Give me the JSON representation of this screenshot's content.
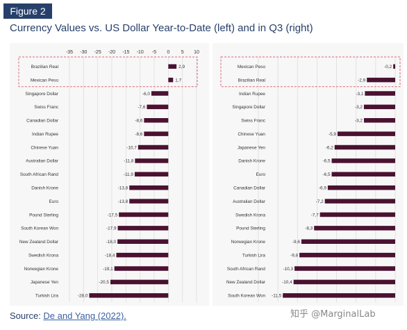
{
  "figure_label": "Figure 2",
  "title": "Currency Values vs. US Dollar Year-to-Date (left) and in Q3 (right)",
  "source": {
    "prefix": "Source: ",
    "link_text": "De and Yang (2022)."
  },
  "watermark": "知乎 @MarginalLab",
  "colors": {
    "bar": "#4a1230",
    "title": "#27406b",
    "highlight_box": "#d9667a",
    "panel_bg": "#f7f7f7"
  },
  "chart_data": [
    {
      "type": "bar",
      "orientation": "horizontal",
      "title": "",
      "xlabel": "",
      "ylabel": "",
      "xlim": [
        -35,
        10
      ],
      "xticks": [
        -35,
        -30,
        -25,
        -20,
        -15,
        -10,
        -5,
        0,
        5,
        10
      ],
      "grid": true,
      "highlighted": [
        "Brazilian Real",
        "Mexican Peso"
      ],
      "categories": [
        "Brazilian Real",
        "Mexican Peso",
        "Singapore Dollar",
        "Swiss Franc",
        "Canadian Dollar",
        "Indian Rupee",
        "Chinese Yuan",
        "Australian Dollar",
        "South African Rand",
        "Danish Krone",
        "Euro",
        "Pound Sterling",
        "South Korean Won",
        "New Zealand Dollar",
        "Swedish Krona",
        "Norwegian Krone",
        "Japanese Yen",
        "Turkish Lira"
      ],
      "values": [
        2.9,
        1.7,
        -6.0,
        -7.6,
        -8.6,
        -8.6,
        -10.7,
        -11.8,
        -11.9,
        -13.8,
        -13.8,
        -17.5,
        -17.9,
        -18.0,
        -18.4,
        -19.1,
        -20.5,
        -28.0
      ],
      "value_labels": [
        "2,9",
        "1,7",
        "-6,0",
        "-7,6",
        "-8,6",
        "-8,6",
        "-10,7",
        "-11,8",
        "-11,9",
        "-13,8",
        "-13,8",
        "-17,5",
        "-17,9",
        "-18,0",
        "-18,4",
        "-19,1",
        "-20,5",
        "-28,0"
      ]
    },
    {
      "type": "bar",
      "orientation": "horizontal",
      "title": "",
      "xlabel": "",
      "ylabel": "",
      "xlim": [
        -14,
        0
      ],
      "grid": true,
      "highlighted": [
        "Mexican Peso",
        "Brazilian Real"
      ],
      "categories": [
        "Mexican Peso",
        "Brazilian Real",
        "Indian Rupee",
        "Singapore Dollar",
        "Swiss Franc",
        "Chinese Yuan",
        "Japanese Yen",
        "Danish Krone",
        "Euro",
        "Canadian Dollar",
        "Australian Dollar",
        "Swedish Krona",
        "Pound Sterling",
        "Norwegian Krone",
        "Turkish Lira",
        "South African Rand",
        "New Zealand Dollar",
        "South Korean Won"
      ],
      "values": [
        -0.2,
        -2.9,
        -3.1,
        -3.2,
        -3.2,
        -5.9,
        -6.2,
        -6.5,
        -6.5,
        -6.9,
        -7.2,
        -7.7,
        -8.3,
        -9.6,
        -9.8,
        -10.3,
        -10.4,
        -11.5
      ],
      "value_labels": [
        "-0,2",
        "-2,9",
        "-3,1",
        "-3,2",
        "-3,2",
        "-5,9",
        "-6,2",
        "-6,5",
        "-6,5",
        "-6,9",
        "-7,2",
        "-7,7",
        "-8,3",
        "-9,6",
        "-9,8",
        "-10,3",
        "-10,4",
        "-11,5"
      ]
    }
  ]
}
